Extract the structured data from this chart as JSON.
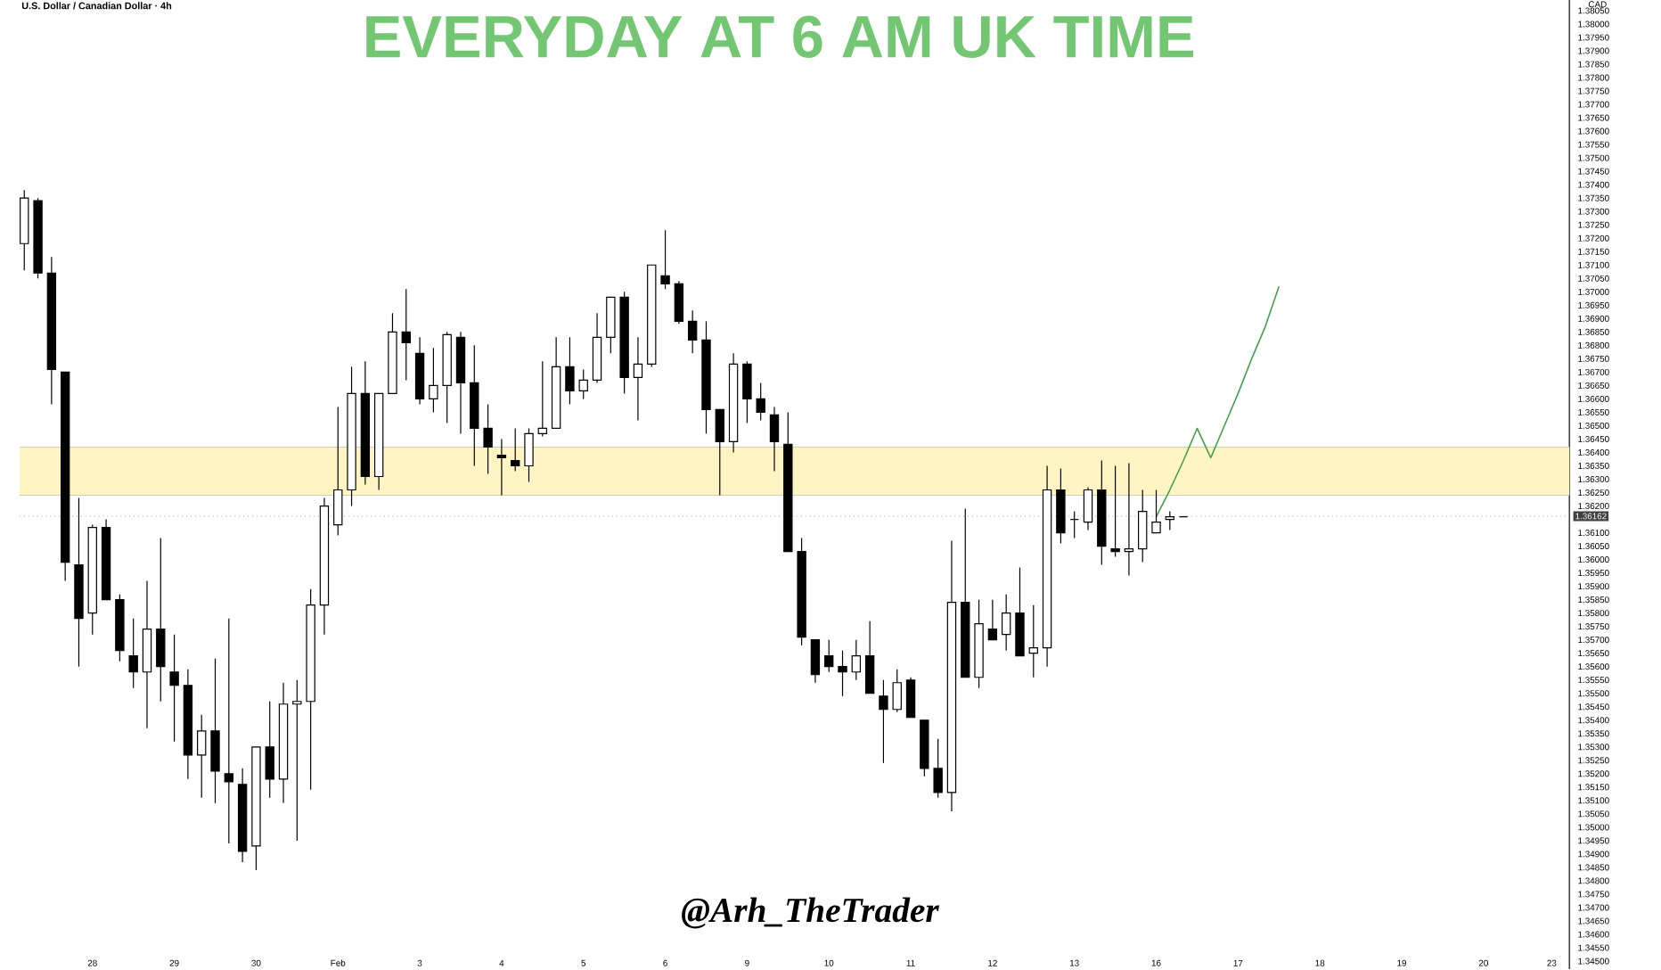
{
  "chart_data": {
    "type": "candlestick",
    "title": "U.S. Dollar / Canadian Dollar · 4h",
    "ylabel": "CAD",
    "annotations": [
      "EVERYDAY AT 6 AM UK TIME",
      "@Arh_TheTrader"
    ],
    "color": "#000000",
    "categories": [
      null,
      null,
      null,
      null,
      null,
      "28",
      null,
      null,
      null,
      null,
      null,
      "29",
      null,
      null,
      null,
      null,
      null,
      "30",
      null,
      null,
      null,
      null,
      null,
      "Feb",
      null,
      null,
      null,
      null,
      null,
      "3",
      null,
      null,
      null,
      null,
      null,
      "4",
      null,
      null,
      null,
      null,
      null,
      "5",
      null,
      null,
      null,
      null,
      null,
      "6",
      null,
      null,
      null,
      null,
      null,
      "9",
      null,
      null,
      null,
      null,
      null,
      "10",
      null,
      null,
      null,
      null,
      null,
      "11",
      null,
      null,
      null,
      null,
      null,
      "12",
      null,
      null,
      null,
      null,
      null,
      "13",
      null,
      null,
      null,
      null,
      null,
      "16",
      null,
      null,
      null,
      null,
      null,
      "17",
      null,
      null,
      null,
      null,
      null,
      "18",
      null,
      null,
      null,
      null,
      null,
      "19",
      null,
      null,
      null,
      null,
      null,
      "20",
      null,
      null,
      null,
      null,
      "23",
      null
    ],
    "ohlc": [
      [
        1.3718,
        1.3738,
        1.3708,
        1.3735
      ],
      [
        1.3734,
        1.3735,
        1.3705,
        1.3707
      ],
      [
        1.3707,
        1.3713,
        1.3658,
        1.3671
      ],
      [
        1.367,
        1.367,
        1.3592,
        1.3599
      ],
      [
        1.3598,
        1.3623,
        1.356,
        1.3578
      ],
      [
        1.358,
        1.3613,
        1.3572,
        1.3612
      ],
      [
        1.3612,
        1.3615,
        1.3585,
        1.3585
      ],
      [
        1.3585,
        1.3587,
        1.3562,
        1.3566
      ],
      [
        1.3564,
        1.3578,
        1.3552,
        1.3558
      ],
      [
        1.3558,
        1.3592,
        1.3537,
        1.3574
      ],
      [
        1.3574,
        1.3608,
        1.3547,
        1.356
      ],
      [
        1.3558,
        1.3572,
        1.3532,
        1.3553
      ],
      [
        1.3553,
        1.3559,
        1.3518,
        1.3527
      ],
      [
        1.3527,
        1.3542,
        1.3511,
        1.3536
      ],
      [
        1.3536,
        1.3563,
        1.3509,
        1.3521
      ],
      [
        1.352,
        1.3578,
        1.3494,
        1.3517
      ],
      [
        1.3516,
        1.3522,
        1.3487,
        1.3491
      ],
      [
        1.3493,
        1.353,
        1.3484,
        1.353
      ],
      [
        1.353,
        1.3547,
        1.3511,
        1.3518
      ],
      [
        1.3518,
        1.3554,
        1.3509,
        1.3546
      ],
      [
        1.3546,
        1.3555,
        1.3495,
        1.3547
      ],
      [
        1.3547,
        1.3589,
        1.3514,
        1.3583
      ],
      [
        1.3583,
        1.3623,
        1.3572,
        1.362
      ],
      [
        1.3613,
        1.3657,
        1.3609,
        1.3626
      ],
      [
        1.3626,
        1.3672,
        1.362,
        1.3662
      ],
      [
        1.3662,
        1.3674,
        1.3628,
        1.3631
      ],
      [
        1.3631,
        1.3662,
        1.3626,
        1.3662
      ],
      [
        1.3662,
        1.3692,
        1.3662,
        1.3685
      ],
      [
        1.3685,
        1.3701,
        1.3667,
        1.3681
      ],
      [
        1.3677,
        1.3683,
        1.3658,
        1.366
      ],
      [
        1.366,
        1.3679,
        1.3655,
        1.3665
      ],
      [
        1.3665,
        1.3685,
        1.3651,
        1.3684
      ],
      [
        1.3683,
        1.3685,
        1.3647,
        1.3666
      ],
      [
        1.3666,
        1.368,
        1.3635,
        1.3649
      ],
      [
        1.3649,
        1.3658,
        1.3632,
        1.3642
      ],
      [
        1.3639,
        1.3645,
        1.3624,
        1.3638
      ],
      [
        1.3637,
        1.3649,
        1.3633,
        1.3635
      ],
      [
        1.3635,
        1.3649,
        1.3629,
        1.3647
      ],
      [
        1.3647,
        1.3674,
        1.3646,
        1.3649
      ],
      [
        1.3649,
        1.3683,
        1.3649,
        1.3672
      ],
      [
        1.3672,
        1.3683,
        1.3658,
        1.3663
      ],
      [
        1.3663,
        1.3671,
        1.366,
        1.3667
      ],
      [
        1.3667,
        1.3692,
        1.3666,
        1.3683
      ],
      [
        1.3683,
        1.3698,
        1.3677,
        1.3698
      ],
      [
        1.3698,
        1.37,
        1.3662,
        1.3668
      ],
      [
        1.3668,
        1.3683,
        1.3652,
        1.3673
      ],
      [
        1.3673,
        1.371,
        1.3672,
        1.371
      ],
      [
        1.3706,
        1.3723,
        1.3701,
        1.3703
      ],
      [
        1.3703,
        1.3704,
        1.3688,
        1.3689
      ],
      [
        1.3689,
        1.3693,
        1.3677,
        1.3682
      ],
      [
        1.3682,
        1.3689,
        1.3647,
        1.3656
      ],
      [
        1.3656,
        1.3656,
        1.3624,
        1.3644
      ],
      [
        1.3644,
        1.3677,
        1.364,
        1.3673
      ],
      [
        1.3673,
        1.3674,
        1.3651,
        1.366
      ],
      [
        1.366,
        1.3666,
        1.3652,
        1.3655
      ],
      [
        1.3654,
        1.3657,
        1.3633,
        1.3644
      ],
      [
        1.3643,
        1.3655,
        1.3603,
        1.3603
      ],
      [
        1.3603,
        1.3608,
        1.3568,
        1.3571
      ],
      [
        1.357,
        1.357,
        1.3554,
        1.3557
      ],
      [
        1.3564,
        1.357,
        1.3558,
        1.356
      ],
      [
        1.356,
        1.3566,
        1.3549,
        1.3558
      ],
      [
        1.3558,
        1.357,
        1.3555,
        1.3564
      ],
      [
        1.3564,
        1.3577,
        1.355,
        1.355
      ],
      [
        1.3549,
        1.3555,
        1.3524,
        1.3544
      ],
      [
        1.3544,
        1.3559,
        1.3543,
        1.3554
      ],
      [
        1.3555,
        1.3556,
        1.3541,
        1.3541
      ],
      [
        1.354,
        1.354,
        1.3519,
        1.3522
      ],
      [
        1.3522,
        1.3533,
        1.3511,
        1.3513
      ],
      [
        1.3513,
        1.3607,
        1.3506,
        1.3584
      ],
      [
        1.3584,
        1.3619,
        1.3556,
        1.3556
      ],
      [
        1.3556,
        1.3585,
        1.3552,
        1.3576
      ],
      [
        1.3574,
        1.3585,
        1.357,
        1.357
      ],
      [
        1.3572,
        1.3587,
        1.3566,
        1.358
      ],
      [
        1.358,
        1.3597,
        1.3564,
        1.3564
      ],
      [
        1.3565,
        1.3583,
        1.3556,
        1.3567
      ],
      [
        1.3567,
        1.3635,
        1.356,
        1.3626
      ],
      [
        1.3626,
        1.3634,
        1.3606,
        1.361
      ],
      [
        1.3615,
        1.3618,
        1.3608,
        1.3615
      ],
      [
        1.3614,
        1.3627,
        1.3611,
        1.3626
      ],
      [
        1.3626,
        1.3637,
        1.3598,
        1.3605
      ],
      [
        1.3604,
        1.3635,
        1.3601,
        1.3603
      ],
      [
        1.3603,
        1.3636,
        1.3594,
        1.3604
      ],
      [
        1.3604,
        1.3626,
        1.3599,
        1.3618
      ],
      [
        1.361,
        1.3626,
        1.361,
        1.3614
      ],
      [
        1.3615,
        1.3618,
        1.3611,
        1.3616
      ],
      [
        1.3616,
        1.3616,
        1.3616,
        1.3616
      ],
      null,
      null,
      null,
      null,
      null,
      null,
      null,
      null,
      null,
      null,
      null,
      null,
      null,
      null,
      null,
      null,
      null,
      null,
      null,
      null,
      null,
      null,
      null,
      null,
      null,
      null,
      null,
      null
    ],
    "series": [
      {
        "type": "line",
        "color": "#43a047",
        "values": [
          null,
          null,
          null,
          null,
          null,
          null,
          null,
          null,
          null,
          null,
          null,
          null,
          null,
          null,
          null,
          null,
          null,
          null,
          null,
          null,
          null,
          null,
          null,
          null,
          null,
          null,
          null,
          null,
          null,
          null,
          null,
          null,
          null,
          null,
          null,
          null,
          null,
          null,
          null,
          null,
          null,
          null,
          null,
          null,
          null,
          null,
          null,
          null,
          null,
          null,
          null,
          null,
          null,
          null,
          null,
          null,
          null,
          null,
          null,
          null,
          null,
          null,
          null,
          null,
          null,
          null,
          null,
          null,
          null,
          null,
          null,
          null,
          null,
          null,
          null,
          null,
          null,
          null,
          null,
          null,
          null,
          null,
          null,
          1.3616,
          1.3626,
          1.3637,
          1.3649,
          1.3638,
          1.365,
          1.3662,
          1.3675,
          1.3687,
          1.3702,
          null,
          null,
          null,
          null,
          null,
          null,
          null,
          null,
          null,
          null,
          null,
          null,
          null,
          null,
          null,
          null,
          null,
          null,
          null,
          null,
          null
        ]
      }
    ],
    "bands": [
      {
        "axis": "y",
        "from": 1.3624,
        "to": 1.3642,
        "color": "#fff5c4"
      }
    ],
    "ref_lines": [
      {
        "axis": "y",
        "value": 1.36162,
        "label": "1.36162",
        "color": "#9e9e9e",
        "line_style": "dotted"
      }
    ],
    "ylim": [
      1.3447,
      1.3809
    ],
    "yticks": [
      {
        "value": 1.345,
        "label": "1.34500"
      },
      {
        "value": 1.3455,
        "label": "1.34550"
      },
      {
        "value": 1.346,
        "label": "1.34600"
      },
      {
        "value": 1.3465,
        "label": "1.34650"
      },
      {
        "value": 1.347,
        "label": "1.34700"
      },
      {
        "value": 1.3475,
        "label": "1.34750"
      },
      {
        "value": 1.348,
        "label": "1.34800"
      },
      {
        "value": 1.3485,
        "label": "1.34850"
      },
      {
        "value": 1.349,
        "label": "1.34900"
      },
      {
        "value": 1.3495,
        "label": "1.34950"
      },
      {
        "value": 1.35,
        "label": "1.35000"
      },
      {
        "value": 1.3505,
        "label": "1.35050"
      },
      {
        "value": 1.351,
        "label": "1.35100"
      },
      {
        "value": 1.3515,
        "label": "1.35150"
      },
      {
        "value": 1.352,
        "label": "1.35200"
      },
      {
        "value": 1.3525,
        "label": "1.35250"
      },
      {
        "value": 1.353,
        "label": "1.35300"
      },
      {
        "value": 1.3535,
        "label": "1.35350"
      },
      {
        "value": 1.354,
        "label": "1.35400"
      },
      {
        "value": 1.3545,
        "label": "1.35450"
      },
      {
        "value": 1.355,
        "label": "1.35500"
      },
      {
        "value": 1.3555,
        "label": "1.35550"
      },
      {
        "value": 1.356,
        "label": "1.35600"
      },
      {
        "value": 1.3565,
        "label": "1.35650"
      },
      {
        "value": 1.357,
        "label": "1.35700"
      },
      {
        "value": 1.3575,
        "label": "1.35750"
      },
      {
        "value": 1.358,
        "label": "1.35800"
      },
      {
        "value": 1.3585,
        "label": "1.35850"
      },
      {
        "value": 1.359,
        "label": "1.35900"
      },
      {
        "value": 1.3595,
        "label": "1.35950"
      },
      {
        "value": 1.36,
        "label": "1.36000"
      },
      {
        "value": 1.3605,
        "label": "1.36050"
      },
      {
        "value": 1.361,
        "label": "1.36100"
      },
      {
        "value": 1.362,
        "label": "1.36200"
      },
      {
        "value": 1.3625,
        "label": "1.36250"
      },
      {
        "value": 1.363,
        "label": "1.36300"
      },
      {
        "value": 1.3635,
        "label": "1.36350"
      },
      {
        "value": 1.364,
        "label": "1.36400"
      },
      {
        "value": 1.3645,
        "label": "1.36450"
      },
      {
        "value": 1.365,
        "label": "1.36500"
      },
      {
        "value": 1.3655,
        "label": "1.36550"
      },
      {
        "value": 1.366,
        "label": "1.36600"
      },
      {
        "value": 1.3665,
        "label": "1.36650"
      },
      {
        "value": 1.367,
        "label": "1.36700"
      },
      {
        "value": 1.3675,
        "label": "1.36750"
      },
      {
        "value": 1.368,
        "label": "1.36800"
      },
      {
        "value": 1.3685,
        "label": "1.36850"
      },
      {
        "value": 1.369,
        "label": "1.36900"
      },
      {
        "value": 1.3695,
        "label": "1.36950"
      },
      {
        "value": 1.37,
        "label": "1.37000"
      },
      {
        "value": 1.3705,
        "label": "1.37050"
      },
      {
        "value": 1.371,
        "label": "1.37100"
      },
      {
        "value": 1.3715,
        "label": "1.37150"
      },
      {
        "value": 1.372,
        "label": "1.37200"
      },
      {
        "value": 1.3725,
        "label": "1.37250"
      },
      {
        "value": 1.373,
        "label": "1.37300"
      },
      {
        "value": 1.3735,
        "label": "1.37350"
      },
      {
        "value": 1.374,
        "label": "1.37400"
      },
      {
        "value": 1.3745,
        "label": "1.37450"
      },
      {
        "value": 1.375,
        "label": "1.37500"
      },
      {
        "value": 1.3755,
        "label": "1.37550"
      },
      {
        "value": 1.376,
        "label": "1.37600"
      },
      {
        "value": 1.3765,
        "label": "1.37650"
      },
      {
        "value": 1.377,
        "label": "1.37700"
      },
      {
        "value": 1.3775,
        "label": "1.37750"
      },
      {
        "value": 1.378,
        "label": "1.37800"
      },
      {
        "value": 1.3785,
        "label": "1.37850"
      },
      {
        "value": 1.379,
        "label": "1.37900"
      },
      {
        "value": 1.3795,
        "label": "1.37950"
      },
      {
        "value": 1.38,
        "label": "1.38000"
      },
      {
        "value": 1.3805,
        "label": "1.38050"
      }
    ]
  }
}
